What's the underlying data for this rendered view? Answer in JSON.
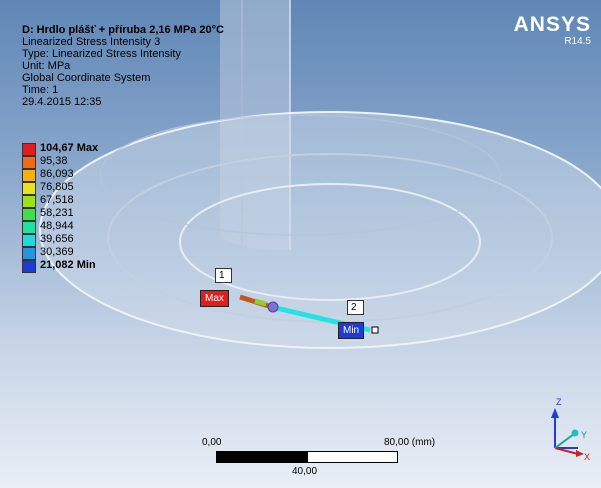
{
  "header": {
    "title": "D: Hrdlo plášť + příruba 2,16 MPa 20°C",
    "lines": [
      "Linearized Stress Intensity 3",
      "Type: Linearized Stress Intensity",
      "Unit: MPa",
      "Global Coordinate System",
      "Time: 1",
      "29.4.2015 12:35"
    ]
  },
  "legend": {
    "entries": [
      {
        "label": "104,67 Max",
        "color": "#e41c1c"
      },
      {
        "label": "95,38",
        "color": "#f06b12"
      },
      {
        "label": "86,093",
        "color": "#f5b20c"
      },
      {
        "label": "76,805",
        "color": "#e8e31a"
      },
      {
        "label": "67,518",
        "color": "#9be21b"
      },
      {
        "label": "58,231",
        "color": "#3be04a"
      },
      {
        "label": "48,944",
        "color": "#20e3a2"
      },
      {
        "label": "39,656",
        "color": "#1fd9da"
      },
      {
        "label": "30,369",
        "color": "#2297e0"
      },
      {
        "label": "21,082 Min",
        "color": "#1e3bd6"
      }
    ]
  },
  "logo": {
    "brand": "ANSYS",
    "version": "R14.5"
  },
  "probes": {
    "max_label": "Max",
    "min_label": "Min",
    "flag1": "1",
    "flag2": "2"
  },
  "scalebar": {
    "left": "0,00",
    "right": "80,00 (mm)",
    "middle": "40,00"
  },
  "axes": {
    "z": "Z",
    "y": "Y",
    "x": "X"
  }
}
